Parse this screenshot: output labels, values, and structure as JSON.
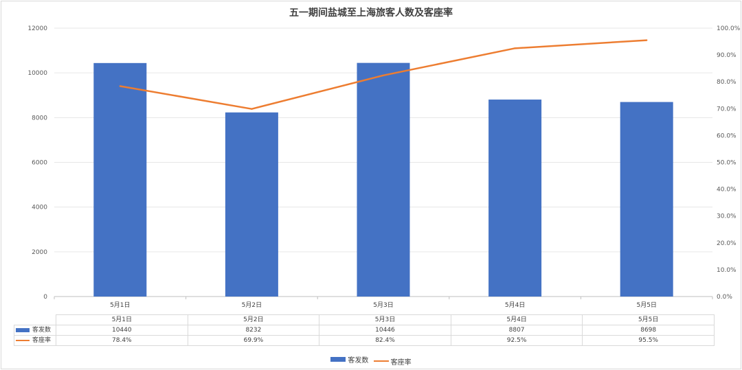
{
  "chart_data": {
    "type": "bar",
    "title": "五一期间盐城至上海旅客人数及客座率",
    "categories": [
      "5月1日",
      "5月2日",
      "5月3日",
      "5月4日",
      "5月5日"
    ],
    "series": [
      {
        "name": "客发数",
        "type": "bar",
        "axis": "left",
        "color": "#4472c4",
        "values": [
          10440,
          8232,
          10446,
          8807,
          8698
        ]
      },
      {
        "name": "客座率",
        "type": "line",
        "axis": "right",
        "color": "#ed7d31",
        "values": [
          0.784,
          0.699,
          0.824,
          0.925,
          0.955
        ]
      }
    ],
    "y_left": {
      "min": 0,
      "max": 12000,
      "step": 2000,
      "ticks": [
        "0",
        "2000",
        "4000",
        "6000",
        "8000",
        "10000",
        "12000"
      ]
    },
    "y_right": {
      "min": 0,
      "max": 1.0,
      "step": 0.1,
      "ticks": [
        "0.0%",
        "10.0%",
        "20.0%",
        "30.0%",
        "40.0%",
        "50.0%",
        "60.0%",
        "70.0%",
        "80.0%",
        "90.0%",
        "100.0%"
      ]
    },
    "grid": true,
    "legend": "bottom",
    "data_table": {
      "rows": [
        {
          "label": "客发数",
          "cells": [
            "10440",
            "8232",
            "10446",
            "8807",
            "8698"
          ]
        },
        {
          "label": "客座率",
          "cells": [
            "78.4%",
            "69.9%",
            "82.4%",
            "92.5%",
            "95.5%"
          ]
        }
      ]
    }
  }
}
